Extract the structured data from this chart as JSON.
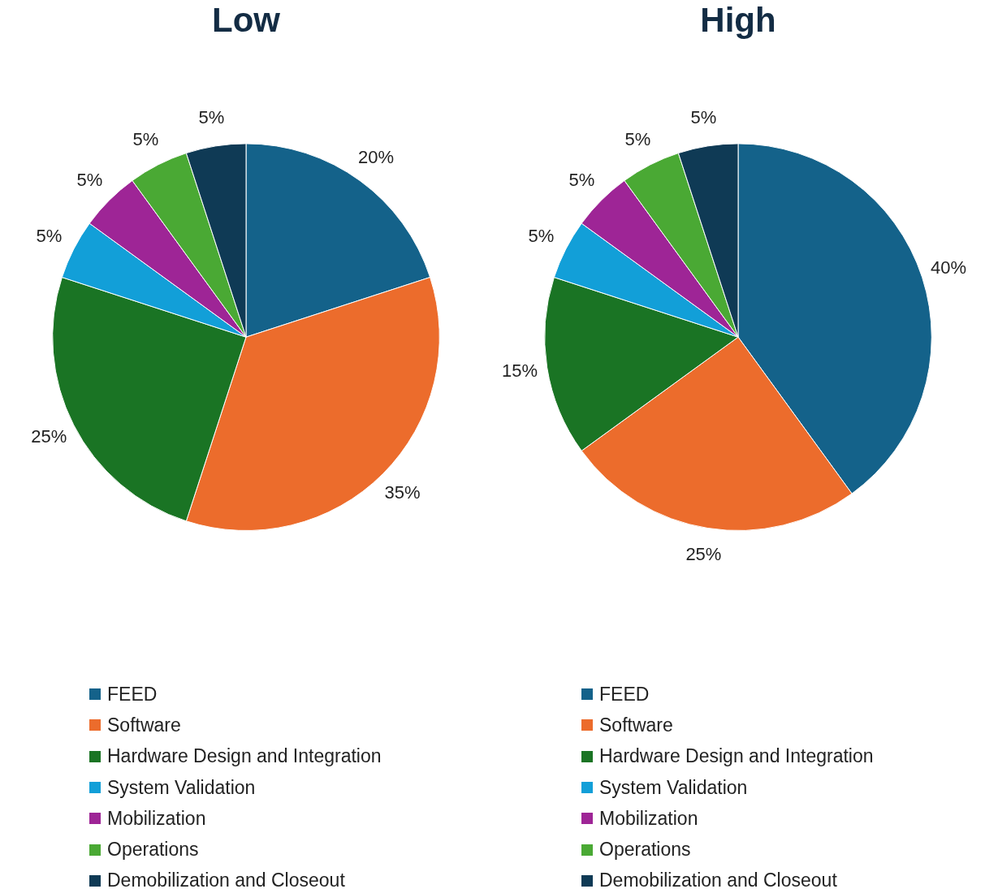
{
  "chart_data": [
    {
      "type": "pie",
      "title": "Low",
      "categories": [
        "FEED",
        "Software",
        "Hardware Design and Integration",
        "System Validation",
        "Mobilization",
        "Operations",
        "Demobilization and Closeout"
      ],
      "values": [
        20,
        35,
        25,
        5,
        5,
        5,
        5
      ],
      "colors": [
        "#14628a",
        "#ec6c2c",
        "#1a7424",
        "#129fd8",
        "#9e2596",
        "#4aa934",
        "#0f3a55"
      ],
      "value_labels": [
        "20%",
        "35%",
        "25%",
        "5%",
        "5%",
        "5%",
        "5%"
      ],
      "legend": "bottom"
    },
    {
      "type": "pie",
      "title": "High",
      "categories": [
        "FEED",
        "Software",
        "Hardware Design and Integration",
        "System Validation",
        "Mobilization",
        "Operations",
        "Demobilization and Closeout"
      ],
      "values": [
        40,
        25,
        15,
        5,
        5,
        5,
        5
      ],
      "colors": [
        "#14628a",
        "#ec6c2c",
        "#1a7424",
        "#129fd8",
        "#9e2596",
        "#4aa934",
        "#0f3a55"
      ],
      "value_labels": [
        "40%",
        "25%",
        "15%",
        "5%",
        "5%",
        "5%",
        "5%"
      ],
      "legend": "bottom"
    }
  ]
}
